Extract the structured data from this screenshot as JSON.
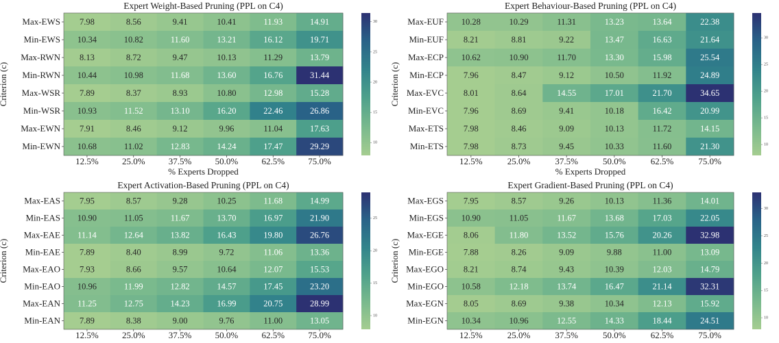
{
  "chart_data": [
    {
      "type": "heatmap",
      "title": "Expert Weight-Based Pruning (PPL on C4)",
      "x_categories": [
        "12.5%",
        "25.0%",
        "37.5%",
        "50.0%",
        "62.5%",
        "75.0%"
      ],
      "y_categories": [
        "Max-EWS",
        "Min-EWS",
        "Max-RWN",
        "Min-RWN",
        "Max-WSR",
        "Min-WSR",
        "Max-EWN",
        "Min-EWN"
      ],
      "xlabel": "% Experts Dropped",
      "ylabel": "Criterion (c)",
      "values": [
        [
          7.98,
          8.56,
          9.41,
          10.41,
          11.93,
          14.91
        ],
        [
          10.34,
          10.82,
          11.6,
          13.21,
          16.12,
          19.71
        ],
        [
          8.13,
          8.72,
          9.47,
          10.13,
          11.29,
          13.79
        ],
        [
          10.44,
          10.98,
          11.68,
          13.6,
          16.76,
          31.44
        ],
        [
          7.89,
          8.37,
          8.93,
          10.8,
          12.98,
          15.28
        ],
        [
          10.93,
          11.52,
          13.1,
          16.2,
          22.46,
          26.86
        ],
        [
          7.91,
          8.46,
          9.12,
          9.96,
          11.04,
          17.63
        ],
        [
          10.68,
          11.02,
          12.83,
          14.24,
          17.47,
          29.29
        ]
      ],
      "value_labels": [
        [
          "7.98",
          "8.56",
          "9.41",
          "10.41",
          "11.93",
          "14.91"
        ],
        [
          "10.34",
          "10.82",
          "11.60",
          "13.21",
          "16.12",
          "19.71"
        ],
        [
          "8.13",
          "8.72",
          "9.47",
          "10.13",
          "11.29",
          "13.79"
        ],
        [
          "10.44",
          "10.98",
          "11.68",
          "13.60",
          "16.76",
          "31.44"
        ],
        [
          "7.89",
          "8.37",
          "8.93",
          "10.80",
          "12.98",
          "15.28"
        ],
        [
          "10.93",
          "11.52",
          "13.10",
          "16.20",
          "22.46",
          "26.86"
        ],
        [
          "7.91",
          "8.46",
          "9.12",
          "9.96",
          "11.04",
          "17.63"
        ],
        [
          "10.68",
          "11.02",
          "12.83",
          "14.24",
          "17.47",
          "29.29"
        ]
      ],
      "clim": [
        7.89,
        31.44
      ],
      "cticks": [
        10,
        15,
        20,
        25,
        30
      ],
      "colorscale": [
        "#a5cd90",
        "#79b98d",
        "#4fa18b",
        "#32848b",
        "#296388",
        "#2c3172"
      ]
    },
    {
      "type": "heatmap",
      "title": "Expert Behaviour-Based Pruning (PPL on C4)",
      "x_categories": [
        "12.5%",
        "25.0%",
        "37.5%",
        "50.0%",
        "62.5%",
        "75.0%"
      ],
      "y_categories": [
        "Max-EUF",
        "Min-EUF",
        "Max-ECP",
        "Min-ECP",
        "Max-EVC",
        "Min-EVC",
        "Max-ETS",
        "Min-ETS"
      ],
      "xlabel": "% Experts Dropped",
      "ylabel": "Criterion (c)",
      "values": [
        [
          10.28,
          10.29,
          11.31,
          13.23,
          13.64,
          22.38
        ],
        [
          8.21,
          8.81,
          9.22,
          13.47,
          16.63,
          21.64
        ],
        [
          10.62,
          10.9,
          11.7,
          13.3,
          15.98,
          25.54
        ],
        [
          7.96,
          8.47,
          9.12,
          10.5,
          11.92,
          24.89
        ],
        [
          8.01,
          8.64,
          14.55,
          17.01,
          21.7,
          34.65
        ],
        [
          7.96,
          8.69,
          9.41,
          10.18,
          16.42,
          20.99
        ],
        [
          7.98,
          8.46,
          9.09,
          10.13,
          11.72,
          14.15
        ],
        [
          7.98,
          8.73,
          9.45,
          10.33,
          11.6,
          21.3
        ]
      ],
      "value_labels": [
        [
          "10.28",
          "10.29",
          "11.31",
          "13.23",
          "13.64",
          "22.38"
        ],
        [
          "8.21",
          "8.81",
          "9.22",
          "13.47",
          "16.63",
          "21.64"
        ],
        [
          "10.62",
          "10.90",
          "11.70",
          "13.30",
          "15.98",
          "25.54"
        ],
        [
          "7.96",
          "8.47",
          "9.12",
          "10.50",
          "11.92",
          "24.89"
        ],
        [
          "8.01",
          "8.64",
          "14.55",
          "17.01",
          "21.70",
          "34.65"
        ],
        [
          "7.96",
          "8.69",
          "9.41",
          "10.18",
          "16.42",
          "20.99"
        ],
        [
          "7.98",
          "8.46",
          "9.09",
          "10.13",
          "11.72",
          "14.15"
        ],
        [
          "7.98",
          "8.73",
          "9.45",
          "10.33",
          "11.60",
          "21.30"
        ]
      ],
      "clim": [
        7.96,
        34.65
      ],
      "cticks": [
        10,
        15,
        20,
        25,
        30
      ],
      "colorscale": [
        "#a5cd90",
        "#79b98d",
        "#4fa18b",
        "#32848b",
        "#296388",
        "#2c3172"
      ]
    },
    {
      "type": "heatmap",
      "title": "Expert Activation-Based Pruning (PPL on C4)",
      "x_categories": [
        "12.5%",
        "25.0%",
        "37.5%",
        "50.0%",
        "62.5%",
        "75.0%"
      ],
      "y_categories": [
        "Max-EAS",
        "Min-EAS",
        "Max-EAE",
        "Min-EAE",
        "Max-EAO",
        "Min-EAO",
        "Max-EAN",
        "Min-EAN"
      ],
      "ylabel": "Criterion (c)",
      "values": [
        [
          7.95,
          8.57,
          9.28,
          10.25,
          11.68,
          14.99
        ],
        [
          10.9,
          11.05,
          11.67,
          13.7,
          16.97,
          21.9
        ],
        [
          11.14,
          12.64,
          13.82,
          16.43,
          19.8,
          26.76
        ],
        [
          7.89,
          8.4,
          8.99,
          9.72,
          11.06,
          13.36
        ],
        [
          7.93,
          8.66,
          9.57,
          10.64,
          12.07,
          15.53
        ],
        [
          10.96,
          11.99,
          12.82,
          14.57,
          17.45,
          23.2
        ],
        [
          11.25,
          12.75,
          14.23,
          16.99,
          20.75,
          28.99
        ],
        [
          7.89,
          8.38,
          9.0,
          9.76,
          11.0,
          13.05
        ]
      ],
      "value_labels": [
        [
          "7.95",
          "8.57",
          "9.28",
          "10.25",
          "11.68",
          "14.99"
        ],
        [
          "10.90",
          "11.05",
          "11.67",
          "13.70",
          "16.97",
          "21.90"
        ],
        [
          "11.14",
          "12.64",
          "13.82",
          "16.43",
          "19.80",
          "26.76"
        ],
        [
          "7.89",
          "8.40",
          "8.99",
          "9.72",
          "11.06",
          "13.36"
        ],
        [
          "7.93",
          "8.66",
          "9.57",
          "10.64",
          "12.07",
          "15.53"
        ],
        [
          "10.96",
          "11.99",
          "12.82",
          "14.57",
          "17.45",
          "23.20"
        ],
        [
          "11.25",
          "12.75",
          "14.23",
          "16.99",
          "20.75",
          "28.99"
        ],
        [
          "7.89",
          "8.38",
          "9.00",
          "9.76",
          "11.00",
          "13.05"
        ]
      ],
      "clim": [
        7.89,
        28.99
      ],
      "cticks": [
        10,
        15,
        20,
        25
      ],
      "colorscale": [
        "#a5cd90",
        "#79b98d",
        "#4fa18b",
        "#32848b",
        "#296388",
        "#2c3172"
      ]
    },
    {
      "type": "heatmap",
      "title": "Expert Gradient-Based Pruning (PPL on C4)",
      "x_categories": [
        "12.5%",
        "25.0%",
        "37.5%",
        "50.0%",
        "62.5%",
        "75.0%"
      ],
      "y_categories": [
        "Max-EGS",
        "Min-EGS",
        "Max-EGE",
        "Min-EGE",
        "Max-EGO",
        "Min-EGO",
        "Max-EGN",
        "Min-EGN"
      ],
      "ylabel": "Criterion (c)",
      "values": [
        [
          7.95,
          8.57,
          9.26,
          10.13,
          11.36,
          14.01
        ],
        [
          10.9,
          11.05,
          11.67,
          13.68,
          17.03,
          22.05
        ],
        [
          8.06,
          11.8,
          13.52,
          15.76,
          20.26,
          32.98
        ],
        [
          7.88,
          8.26,
          9.09,
          9.88,
          11.0,
          13.09
        ],
        [
          8.21,
          8.74,
          9.43,
          10.39,
          12.03,
          14.79
        ],
        [
          10.58,
          12.18,
          13.74,
          16.47,
          21.14,
          32.31
        ],
        [
          8.05,
          8.69,
          9.38,
          10.34,
          12.13,
          15.92
        ],
        [
          10.34,
          10.96,
          12.55,
          14.33,
          18.44,
          24.51
        ]
      ],
      "value_labels": [
        [
          "7.95",
          "8.57",
          "9.26",
          "10.13",
          "11.36",
          "14.01"
        ],
        [
          "10.90",
          "11.05",
          "11.67",
          "13.68",
          "17.03",
          "22.05"
        ],
        [
          "8.06",
          "11.80",
          "13.52",
          "15.76",
          "20.26",
          "32.98"
        ],
        [
          "7.88",
          "8.26",
          "9.09",
          "9.88",
          "11.00",
          "13.09"
        ],
        [
          "8.21",
          "8.74",
          "9.43",
          "10.39",
          "12.03",
          "14.79"
        ],
        [
          "10.58",
          "12.18",
          "13.74",
          "16.47",
          "21.14",
          "32.31"
        ],
        [
          "8.05",
          "8.69",
          "9.38",
          "10.34",
          "12.13",
          "15.92"
        ],
        [
          "10.34",
          "10.96",
          "12.55",
          "14.33",
          "18.44",
          "24.51"
        ]
      ],
      "clim": [
        7.88,
        32.98
      ],
      "cticks": [
        10,
        15,
        20,
        25,
        30
      ],
      "colorscale": [
        "#a5cd90",
        "#79b98d",
        "#4fa18b",
        "#32848b",
        "#296388",
        "#2c3172"
      ]
    }
  ]
}
